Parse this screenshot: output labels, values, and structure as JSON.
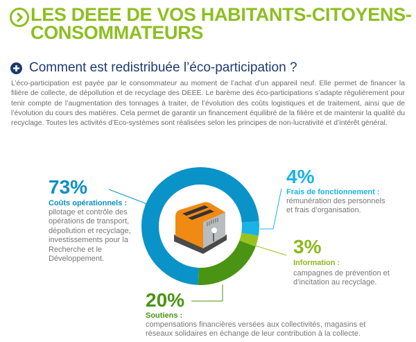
{
  "header": {
    "title_line1": "LES DEEE DE VOS HABITANTS-CITOYENS-",
    "title_line2": "CONSOMMATEURS",
    "subheading": "Comment est redistribuée l’éco-participation ?",
    "intro": "L’éco-participation est payée par le consommateur au moment de l’achat d’un appareil neuf. Elle permet de financer la filière de collecte, de dépollution et de recyclage des DEEE. Le barème des éco-participations s’adapte régulièrement pour tenir compte de l’augmentation des tonnages à traiter, de l’évolution des coûts logistiques et de traitement, ainsi que de l’évolution du cours des matières. Cela permet de garantir un financement équilibré de la filière et de maintenir la qualité du recyclage. Toutes les activités d’Eco-systèmes sont réalisées selon les principes de non-lucrativité et d’intérêt général."
  },
  "chart_data": {
    "type": "pie",
    "segments": [
      {
        "key": "frais",
        "value": 4,
        "pct": "4%",
        "label": "Frais de fonctionnement :",
        "desc": "rémunération des personnels et frais d’organisation.",
        "color": "#19b3e6"
      },
      {
        "key": "info",
        "value": 3,
        "pct": "3%",
        "label": "Information :",
        "desc": "campagnes de prévention et d’incitation au recyclage.",
        "color": "#99c21c"
      },
      {
        "key": "soutiens",
        "value": 20,
        "pct": "20%",
        "label": "Soutiens :",
        "desc": "compensations financières versées aux collectivités, magasins et réseaux solidaires en échange de leur contribution à la collecte.",
        "color": "#4a9313"
      },
      {
        "key": "couts",
        "value": 73,
        "pct": "73%",
        "label": "Coûts opérationnels :",
        "desc": "pilotage et contrôle des opérations de transport, dépollution et recyclage, investissements pour la Recherche et le Développement.",
        "color": "#0a93c8"
      }
    ]
  }
}
